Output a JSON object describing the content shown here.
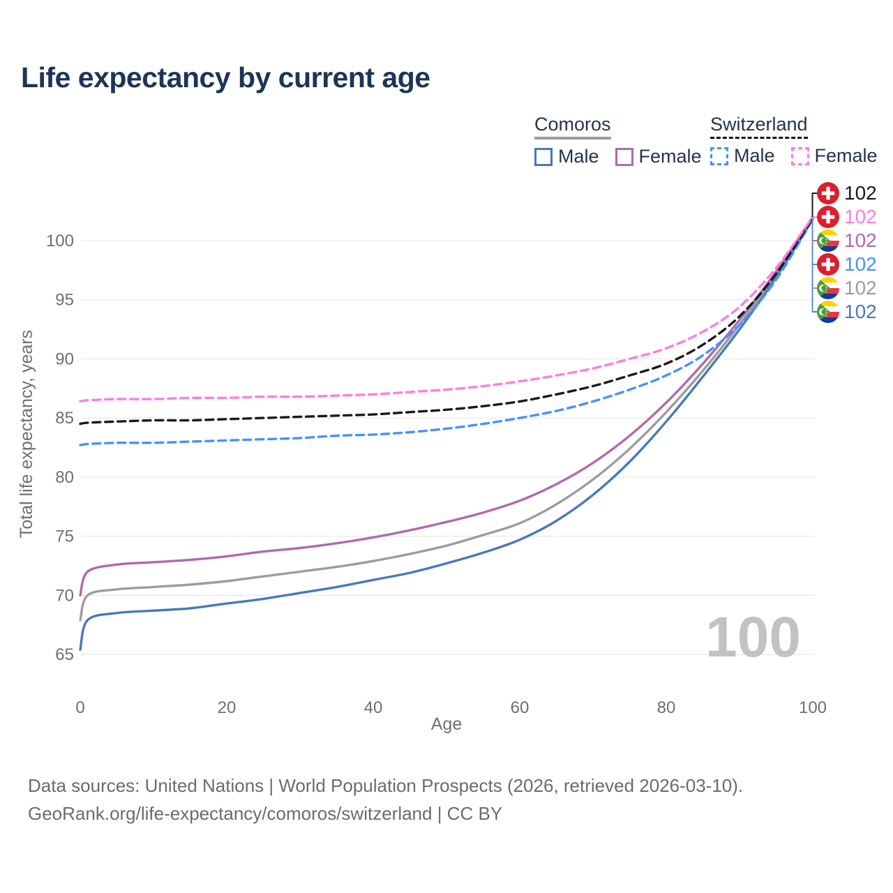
{
  "header": {
    "title": "Life expectancy by current age"
  },
  "legend": {
    "groups": [
      {
        "title": "Comoros",
        "line_style": "solid",
        "items": [
          {
            "label": "Male",
            "color": "#4a77bd"
          },
          {
            "label": "Female",
            "color": "#b169ac"
          }
        ]
      },
      {
        "title": "Switzerland",
        "line_style": "dashed",
        "items": [
          {
            "label": "Male",
            "color": "#4a90fa"
          },
          {
            "label": "Female",
            "color": "#ff7ce0"
          }
        ]
      }
    ]
  },
  "end_labels": [
    {
      "country": "Switzerland",
      "series": "Switzerland both sexes",
      "value": "102",
      "color": "#1a1a1a"
    },
    {
      "country": "Switzerland",
      "series": "Switzerland female",
      "value": "102",
      "color": "#ff7ce0"
    },
    {
      "country": "Comoros",
      "series": "Comoros female",
      "value": "102",
      "color": "#b169ac"
    },
    {
      "country": "Switzerland",
      "series": "Switzerland male",
      "value": "102",
      "color": "#4a90fa"
    },
    {
      "country": "Comoros",
      "series": "Comoros both sexes",
      "value": "102",
      "color": "#9c9c9c"
    },
    {
      "country": "Comoros",
      "series": "Comoros male",
      "value": "102",
      "color": "#4a77bd"
    }
  ],
  "watermark": "100",
  "footer": {
    "line1": "Data sources: United Nations | World Population Prospects (2026, retrieved 2026-03-10).",
    "line2": "GeoRank.org/life-expectancy/comoros/switzerland | CC BY"
  },
  "chart_data": {
    "type": "line",
    "title": "Life expectancy by current age",
    "xlabel": "Age",
    "ylabel": "Total life expectancy, years",
    "xticks": [
      0,
      20,
      40,
      60,
      80,
      100
    ],
    "yticks": [
      65,
      70,
      75,
      80,
      85,
      90,
      95,
      100
    ],
    "xlim": [
      0,
      100
    ],
    "ylim": [
      65,
      104
    ],
    "grid": "horizontal",
    "legend_position": "top-right",
    "series": [
      {
        "name": "Comoros both sexes",
        "country": "Comoros",
        "color": "#9c9c9c",
        "dash": "solid",
        "points": [
          [
            0,
            67.9
          ],
          [
            1,
            70.0
          ],
          [
            5,
            70.5
          ],
          [
            10,
            70.7
          ],
          [
            15,
            70.9
          ],
          [
            20,
            71.2
          ],
          [
            25,
            71.6
          ],
          [
            30,
            72.0
          ],
          [
            35,
            72.4
          ],
          [
            40,
            72.9
          ],
          [
            45,
            73.5
          ],
          [
            50,
            74.2
          ],
          [
            55,
            75.1
          ],
          [
            60,
            76.1
          ],
          [
            65,
            77.7
          ],
          [
            70,
            79.8
          ],
          [
            75,
            82.4
          ],
          [
            80,
            85.5
          ],
          [
            85,
            89.0
          ],
          [
            90,
            92.9
          ],
          [
            95,
            97.2
          ],
          [
            100,
            101.9
          ]
        ]
      },
      {
        "name": "Comoros female",
        "country": "Comoros",
        "color": "#b169ac",
        "dash": "solid",
        "points": [
          [
            0,
            70.0
          ],
          [
            1,
            72.0
          ],
          [
            5,
            72.6
          ],
          [
            10,
            72.8
          ],
          [
            15,
            73.0
          ],
          [
            20,
            73.3
          ],
          [
            25,
            73.7
          ],
          [
            30,
            74.0
          ],
          [
            35,
            74.4
          ],
          [
            40,
            74.9
          ],
          [
            45,
            75.5
          ],
          [
            50,
            76.2
          ],
          [
            55,
            77.0
          ],
          [
            60,
            78.0
          ],
          [
            65,
            79.4
          ],
          [
            70,
            81.2
          ],
          [
            75,
            83.5
          ],
          [
            80,
            86.3
          ],
          [
            85,
            89.6
          ],
          [
            90,
            93.3
          ],
          [
            95,
            97.4
          ],
          [
            100,
            102.0
          ]
        ]
      },
      {
        "name": "Comoros male",
        "country": "Comoros",
        "color": "#4a77bd",
        "dash": "solid",
        "points": [
          [
            0,
            65.4
          ],
          [
            1,
            67.9
          ],
          [
            5,
            68.5
          ],
          [
            10,
            68.7
          ],
          [
            15,
            68.9
          ],
          [
            20,
            69.3
          ],
          [
            25,
            69.7
          ],
          [
            30,
            70.2
          ],
          [
            35,
            70.7
          ],
          [
            40,
            71.3
          ],
          [
            45,
            71.9
          ],
          [
            50,
            72.7
          ],
          [
            55,
            73.6
          ],
          [
            60,
            74.7
          ],
          [
            65,
            76.3
          ],
          [
            70,
            78.5
          ],
          [
            75,
            81.3
          ],
          [
            80,
            84.7
          ],
          [
            85,
            88.5
          ],
          [
            90,
            92.5
          ],
          [
            95,
            96.9
          ],
          [
            100,
            101.8
          ]
        ]
      },
      {
        "name": "Switzerland male",
        "country": "Switzerland",
        "color": "#4a90fa",
        "dash": "dashed",
        "points": [
          [
            0,
            82.7
          ],
          [
            1,
            82.8
          ],
          [
            5,
            82.9
          ],
          [
            10,
            82.9
          ],
          [
            15,
            83.0
          ],
          [
            20,
            83.1
          ],
          [
            25,
            83.2
          ],
          [
            30,
            83.3
          ],
          [
            35,
            83.5
          ],
          [
            40,
            83.6
          ],
          [
            45,
            83.8
          ],
          [
            50,
            84.1
          ],
          [
            55,
            84.5
          ],
          [
            60,
            85.0
          ],
          [
            65,
            85.6
          ],
          [
            70,
            86.4
          ],
          [
            75,
            87.4
          ],
          [
            80,
            88.6
          ],
          [
            85,
            90.3
          ],
          [
            90,
            92.9
          ],
          [
            95,
            96.7
          ],
          [
            100,
            101.8
          ]
        ]
      },
      {
        "name": "Switzerland both sexes",
        "country": "Switzerland",
        "color": "#1a1a1a",
        "dash": "dashed",
        "points": [
          [
            0,
            84.5
          ],
          [
            1,
            84.6
          ],
          [
            5,
            84.7
          ],
          [
            10,
            84.8
          ],
          [
            15,
            84.8
          ],
          [
            20,
            84.9
          ],
          [
            25,
            85.0
          ],
          [
            30,
            85.1
          ],
          [
            35,
            85.2
          ],
          [
            40,
            85.3
          ],
          [
            45,
            85.5
          ],
          [
            50,
            85.7
          ],
          [
            55,
            86.0
          ],
          [
            60,
            86.4
          ],
          [
            65,
            87.0
          ],
          [
            70,
            87.7
          ],
          [
            75,
            88.6
          ],
          [
            80,
            89.6
          ],
          [
            85,
            91.2
          ],
          [
            90,
            93.6
          ],
          [
            95,
            97.2
          ],
          [
            100,
            101.9
          ]
        ]
      },
      {
        "name": "Switzerland female",
        "country": "Switzerland",
        "color": "#ff7ce0",
        "dash": "dashed",
        "points": [
          [
            0,
            86.4
          ],
          [
            1,
            86.5
          ],
          [
            5,
            86.6
          ],
          [
            10,
            86.6
          ],
          [
            15,
            86.7
          ],
          [
            20,
            86.7
          ],
          [
            25,
            86.8
          ],
          [
            30,
            86.8
          ],
          [
            35,
            86.9
          ],
          [
            40,
            87.0
          ],
          [
            45,
            87.2
          ],
          [
            50,
            87.4
          ],
          [
            55,
            87.7
          ],
          [
            60,
            88.1
          ],
          [
            65,
            88.6
          ],
          [
            70,
            89.2
          ],
          [
            75,
            90.0
          ],
          [
            80,
            90.9
          ],
          [
            85,
            92.3
          ],
          [
            90,
            94.4
          ],
          [
            95,
            97.7
          ],
          [
            100,
            102.0
          ]
        ]
      }
    ]
  }
}
